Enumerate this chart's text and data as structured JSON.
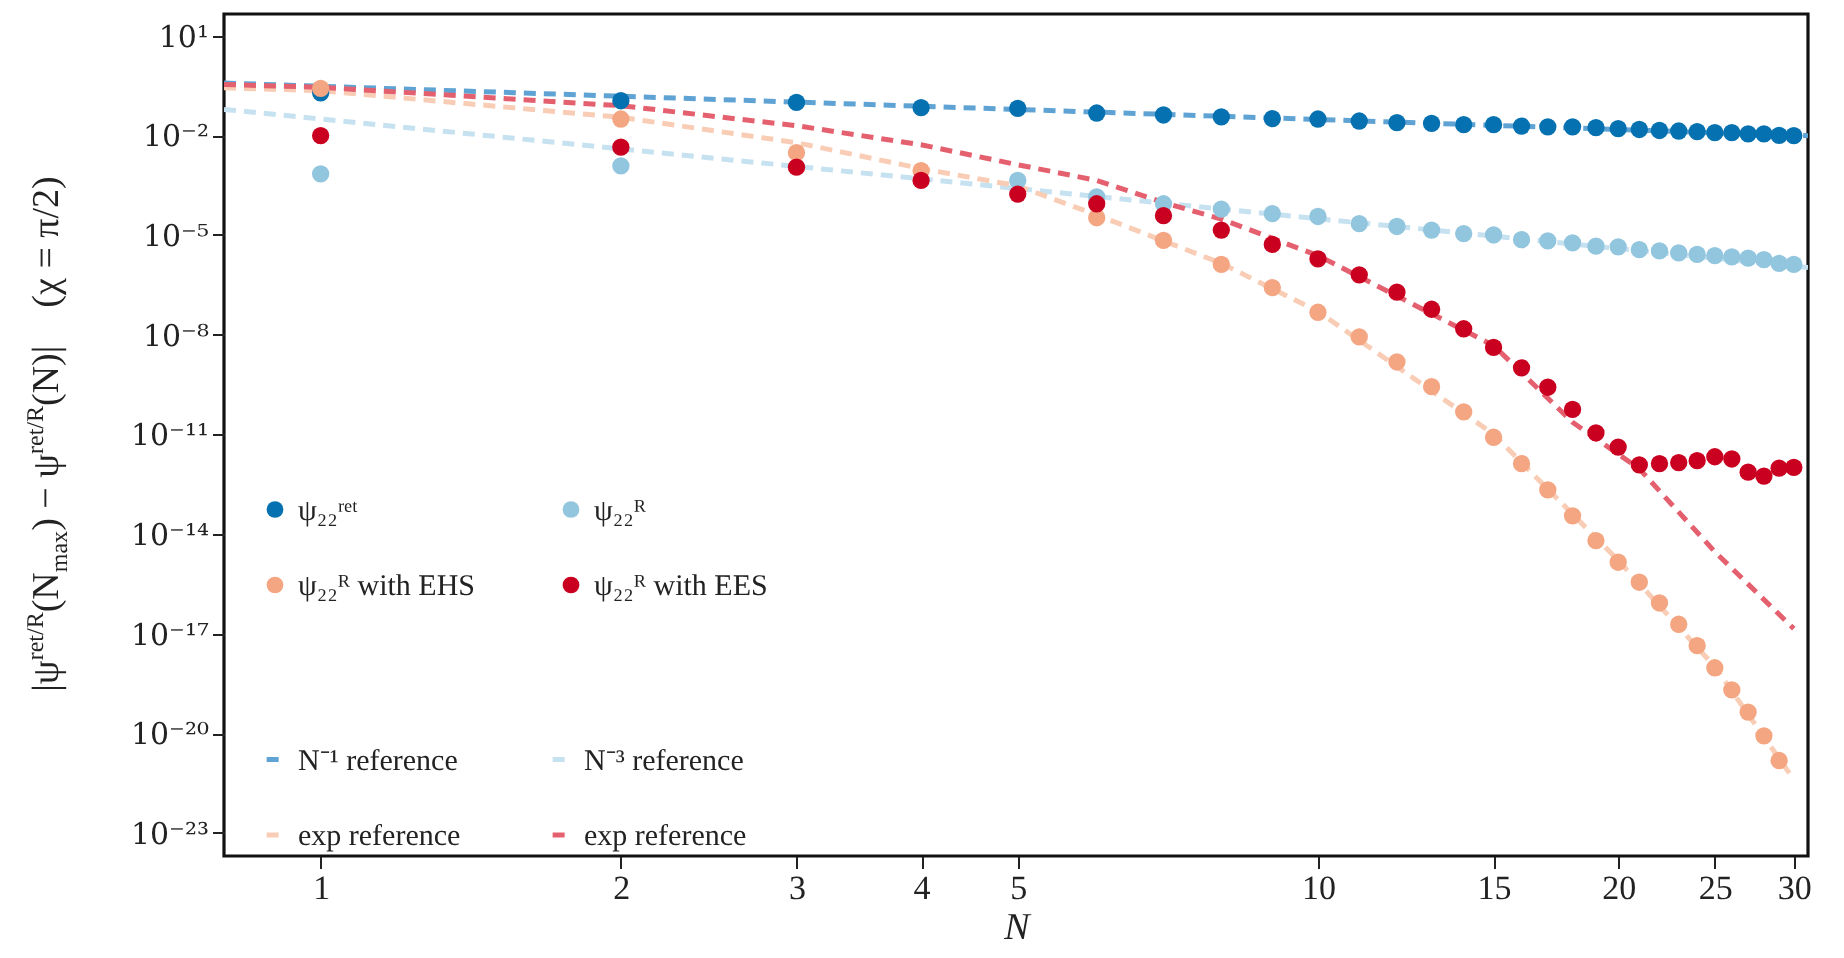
{
  "chart_data": {
    "type": "scatter",
    "xlabel": "N",
    "ylabel": "|ψ$^{ret/R}$(N$_{max}$) − ψ$^{ret/R}$(N)|    (χ = π/2)",
    "log": "xy",
    "legend": "bottom left",
    "xlim": [
      0.8,
      31
    ],
    "xticks": [
      1,
      2,
      3,
      4,
      5,
      10,
      15,
      20,
      25,
      30
    ],
    "ylim": [
      2e-24,
      45
    ],
    "yticks": [
      {
        "value": 10,
        "label": "10¹"
      },
      {
        "value": 0.01,
        "label": "10⁻²"
      },
      {
        "value": 1e-05,
        "label": "10⁻⁵"
      },
      {
        "value": 1e-08,
        "label": "10⁻⁸"
      },
      {
        "value": 1e-11,
        "label": "10⁻¹¹"
      },
      {
        "value": 1e-14,
        "label": "10⁻¹⁴"
      },
      {
        "value": 1e-17,
        "label": "10⁻¹⁷"
      },
      {
        "value": 1e-20,
        "label": "10⁻²⁰"
      },
      {
        "value": 1e-23,
        "label": "10⁻²³"
      }
    ],
    "x": [
      1,
      2,
      3,
      4,
      5,
      6,
      7,
      8,
      9,
      10,
      11,
      12,
      13,
      14,
      15,
      16,
      17,
      18,
      19,
      20,
      21,
      22,
      23,
      24,
      25,
      26,
      27,
      28,
      29,
      30
    ],
    "series": [
      {
        "name": "ψ₂₂ʳᵉᵗ",
        "marker": "circle",
        "color": "#0571b0",
        "values": [
          0.19,
          0.11,
          0.098,
          0.068,
          0.065,
          0.047,
          0.041,
          0.036,
          0.032,
          0.031,
          0.027,
          0.024,
          0.023,
          0.021,
          0.021,
          0.019,
          0.018,
          0.018,
          0.017,
          0.016,
          0.015,
          0.014,
          0.0135,
          0.013,
          0.012,
          0.012,
          0.011,
          0.011,
          0.01,
          0.0098
        ]
      },
      {
        "name": "ψ₂₂ᴿ",
        "marker": "circle",
        "color": "#92c5de",
        "values": [
          0.00069,
          0.0012,
          null,
          null,
          0.00044,
          0.00014,
          8.7e-05,
          6e-05,
          4.4e-05,
          3.6e-05,
          2.2e-05,
          1.8e-05,
          1.4e-05,
          1.1e-05,
          1e-05,
          7.2e-06,
          6.6e-06,
          5.8e-06,
          4.6e-06,
          4.4e-06,
          3.6e-06,
          3.3e-06,
          2.9e-06,
          2.6e-06,
          2.4e-06,
          2.2e-06,
          2e-06,
          1.8e-06,
          1.4e-06,
          1.3e-06
        ]
      },
      {
        "name": "ψ₂₂ᴿ with EHS",
        "marker": "circle",
        "color": "#f4a582",
        "values": [
          0.26,
          0.031,
          0.003,
          0.00087,
          null,
          3.3e-05,
          6.9e-06,
          1.3e-06,
          2.6e-07,
          4.7e-08,
          8.5e-09,
          1.5e-09,
          2.7e-10,
          4.7e-11,
          8.1e-12,
          1.3e-12,
          2.1e-13,
          3.5e-14,
          6.3e-15,
          1.4e-15,
          3.5e-16,
          8.3e-17,
          1.9e-17,
          4.3e-18,
          9.3e-19,
          2e-19,
          4.3e-20,
          8.3e-21,
          1.5e-21,
          null
        ]
      },
      {
        "name": "ψ₂₂ᴿ with EES",
        "marker": "circle",
        "color": "#ca0020",
        "values": [
          0.0098,
          0.0044,
          0.0011,
          0.00044,
          0.00017,
          8.7e-05,
          3.8e-05,
          1.4e-05,
          5.2e-06,
          1.9e-06,
          6.3e-07,
          1.9e-07,
          5.8e-08,
          1.5e-08,
          4.1e-09,
          1e-09,
          2.6e-10,
          5.6e-11,
          1.1e-11,
          4.1e-12,
          1.2e-12,
          1.3e-12,
          1.4e-12,
          1.6e-12,
          2.1e-12,
          1.8e-12,
          7.2e-13,
          5.5e-13,
          9.5e-13,
          1e-12
        ]
      },
      {
        "name": "N⁻¹ reference",
        "type": "line",
        "line_style": "dashed",
        "color": "#5ea3d3",
        "x": [
          0.8,
          1,
          2,
          5,
          10,
          20,
          31
        ],
        "values": [
          0.375,
          0.3,
          0.15,
          0.06,
          0.03,
          0.015,
          0.0097
        ]
      },
      {
        "name": "N⁻³ reference",
        "type": "line",
        "line_style": "dashed",
        "color": "#c6e1f0",
        "x": [
          0.8,
          1,
          2,
          5,
          10,
          20,
          31
        ],
        "values": [
          0.0605,
          0.031,
          0.0039,
          0.00025,
          3.1e-05,
          3.9e-06,
          1.04e-06
        ]
      },
      {
        "name": "exp reference",
        "type": "line",
        "line_style": "dashed",
        "color": "#f9cdb5",
        "x": [
          0.8,
          1,
          2,
          3,
          4,
          5,
          6,
          8,
          10,
          15,
          20,
          25,
          30
        ],
        "values": [
          0.27,
          0.22,
          0.035,
          0.006,
          0.001,
          0.0003,
          4e-05,
          1.4e-06,
          5e-08,
          1e-11,
          1.6e-15,
          1e-18,
          4e-22
        ]
      },
      {
        "name": "exp reference",
        "type": "line",
        "line_style": "dashed",
        "color": "#e5606e",
        "x": [
          0.8,
          1,
          2,
          3,
          4,
          5,
          6,
          7,
          8,
          10,
          15,
          18,
          21,
          25,
          30
        ],
        "values": [
          0.34,
          0.28,
          0.078,
          0.0195,
          0.0052,
          0.0013,
          0.00044,
          9.5e-05,
          3e-05,
          2.4e-06,
          4.7e-09,
          2.3e-11,
          9.1e-13,
          2.9e-15,
          1.4e-17
        ]
      }
    ]
  }
}
